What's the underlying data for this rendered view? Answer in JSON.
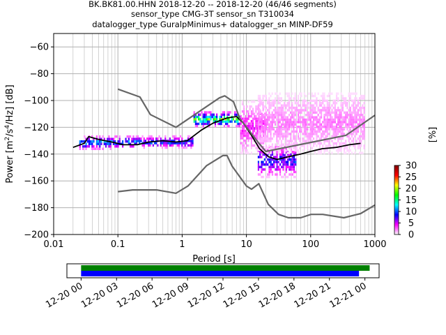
{
  "chart_data": [
    {
      "type": "heatmap",
      "title_lines": [
        "BK.BK81.00.HHN   2018-12-20 -- 2018-12-20  (46/46 segments)",
        "sensor_type CMG-3T sensor_sn T310034",
        "datalogger_type GuralpMinimus+ datalogger_sn MINP-DF59"
      ],
      "xlabel": "Period [s]",
      "ylabel_main": "Power [m",
      "ylabel_sup1": "2",
      "ylabel_mid": "/s",
      "ylabel_sup2": "4",
      "ylabel_end": "/Hz] [dB]",
      "x_scale": "log",
      "xlim": [
        0.01,
        1000
      ],
      "ylim": [
        -200,
        -50
      ],
      "x_ticks": [
        0.01,
        0.1,
        1,
        10,
        100,
        1000
      ],
      "x_tick_labels": [
        "0.01",
        "0.1",
        "1",
        "10",
        "100",
        "1000"
      ],
      "y_ticks": [
        -200,
        -180,
        -160,
        -140,
        -120,
        -100,
        -80,
        -60
      ],
      "y_tick_labels": [
        "−200",
        "−180",
        "−160",
        "−140",
        "−120",
        "−100",
        "−80",
        "−60"
      ],
      "grid": true,
      "colorbar": {
        "label": "[%]",
        "range": [
          0,
          30
        ],
        "ticks": [
          0,
          5,
          10,
          15,
          20,
          25,
          30
        ],
        "tick_labels": [
          "0",
          "5",
          "10",
          "15",
          "20",
          "25",
          "30"
        ],
        "colors": [
          "#ffffff",
          "#ff00ff",
          "#0000ff",
          "#00ffff",
          "#00ff00",
          "#ffff00",
          "#ff0000",
          "#800000"
        ]
      },
      "series": [
        {
          "role": "mean",
          "color": "#000000",
          "x": [
            0.02,
            0.03,
            0.035,
            0.05,
            0.08,
            0.12,
            0.2,
            0.3,
            0.5,
            0.8,
            1.2,
            2,
            3,
            5,
            7,
            9,
            12,
            16,
            22,
            30,
            45,
            70,
            100,
            150,
            250,
            400,
            600
          ],
          "y": [
            -135,
            -132,
            -127,
            -129,
            -131,
            -133,
            -133,
            -131,
            -130,
            -131,
            -130,
            -122,
            -117,
            -113,
            -112,
            -117,
            -126,
            -136,
            -142,
            -144,
            -142,
            -140,
            -138,
            -136,
            -135,
            -133,
            -132
          ]
        },
        {
          "role": "noise-model-high",
          "color": "#666666",
          "x": [
            0.1,
            0.22,
            0.32,
            0.8,
            3.8,
            4.6,
            6.3,
            7.9,
            15.4,
            20,
            354.8,
            1000
          ],
          "y": [
            -91.5,
            -97.4,
            -110.5,
            -120,
            -98,
            -96.5,
            -101,
            -113.5,
            -131.5,
            -138,
            -126,
            -111
          ]
        },
        {
          "role": "noise-model-low",
          "color": "#666666",
          "x": [
            0.1,
            0.17,
            0.4,
            0.8,
            1.24,
            2.4,
            4.3,
            5.0,
            6.0,
            10.0,
            12.0,
            15.6,
            21.9,
            31.6,
            45,
            70,
            101,
            154,
            328,
            600,
            1000
          ],
          "y": [
            -168,
            -166.7,
            -166.7,
            -169.2,
            -163.7,
            -148.6,
            -141.1,
            -141.1,
            -149,
            -163.8,
            -166.2,
            -162.1,
            -177.5,
            -185,
            -187.5,
            -187.5,
            -185,
            -185,
            -187.5,
            -184.4,
            -178
          ]
        }
      ],
      "density_bands": [
        {
          "x": [
            0.025,
            0.2
          ],
          "y": [
            -137,
            -126
          ],
          "peak": 12
        },
        {
          "x": [
            0.2,
            1.5
          ],
          "y": [
            -136,
            -126
          ],
          "peak": 10
        },
        {
          "x": [
            1.5,
            8
          ],
          "y": [
            -120,
            -108
          ],
          "peak": 18
        },
        {
          "x": [
            8,
            20
          ],
          "y": [
            -140,
            -100
          ],
          "peak": 4
        },
        {
          "x": [
            15,
            60
          ],
          "y": [
            -158,
            -132
          ],
          "peak": 9
        },
        {
          "x": [
            15,
            700
          ],
          "y": [
            -140,
            -94
          ],
          "peak": 2
        }
      ]
    },
    {
      "type": "timeline",
      "x_tick_labels": [
        "12-20 00",
        "12-20 03",
        "12-20 06",
        "12-20 09",
        "12-20 12",
        "12-20 15",
        "12-20 18",
        "12-20 21",
        "12-21 00"
      ],
      "x_range_hours": [
        -1.2,
        25.2
      ],
      "bars": [
        {
          "color": "#008000",
          "start_hour": 0,
          "end_hour": 24.4
        },
        {
          "color": "#0000ff",
          "start_hour": 0,
          "end_hour": 23.5
        }
      ]
    }
  ]
}
